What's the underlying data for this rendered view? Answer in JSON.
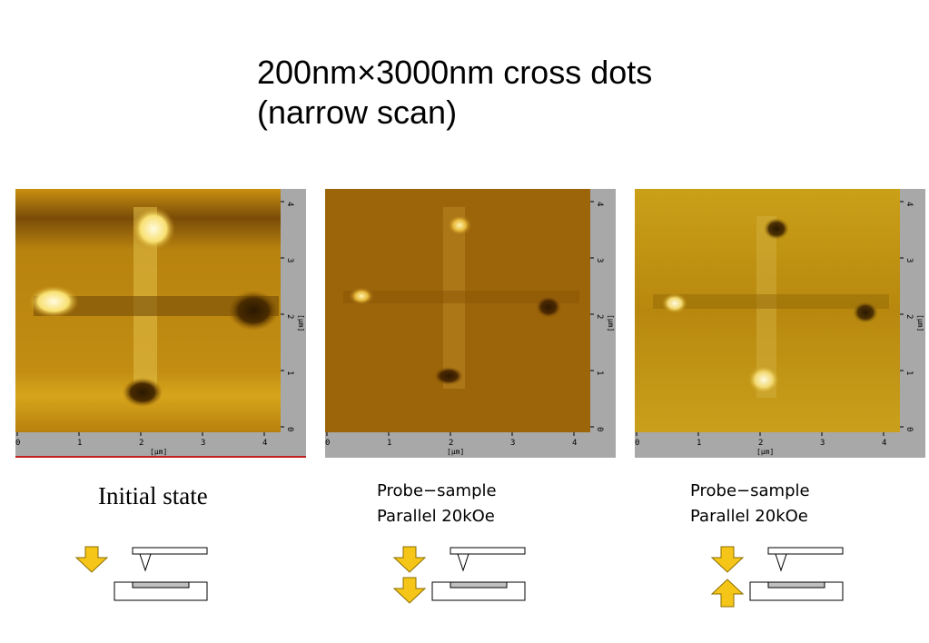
{
  "title": {
    "line1": "200nm×3000nm cross dots",
    "line2": "(narrow scan)"
  },
  "axis": {
    "x_ticks": [
      "0",
      "1",
      "2",
      "3",
      "4"
    ],
    "y_ticks": [
      "0",
      "1",
      "2",
      "3",
      "4"
    ],
    "unit": "[μm]"
  },
  "panels": [
    {
      "caption": "Initial state",
      "arrows": "down"
    },
    {
      "caption_line1": "Probe−sample",
      "caption_line2": "Parallel 20kOe",
      "arrows": "down-down"
    },
    {
      "caption_line1": "Probe−sample",
      "caption_line2": "Parallel 20kOe",
      "arrows": "down-up"
    }
  ],
  "colors": {
    "arrow_fill": "#f5c518",
    "arrow_stroke": "#8a6d00",
    "axis_bar": "#a8a8a8",
    "sample_strip": "#c0c0c0"
  }
}
